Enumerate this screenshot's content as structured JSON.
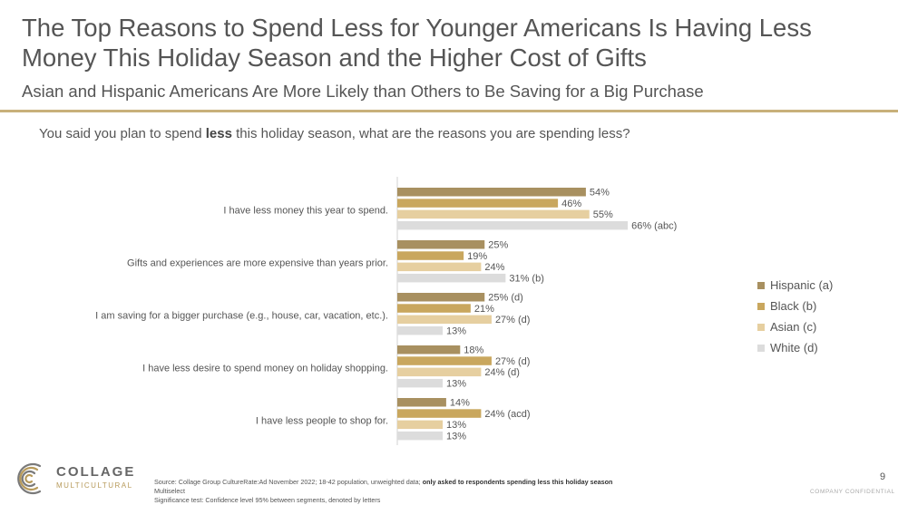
{
  "title": "The Top Reasons to Spend Less for Younger Americans Is Having Less Money This Holiday Season and the Higher Cost of Gifts",
  "subtitle": "Asian and Hispanic Americans Are More Likely than Others to Be Saving for a Big Purchase",
  "question": {
    "before": "You said you plan to spend ",
    "bold": "less",
    "after": " this holiday season, what are the reasons you are spending less?"
  },
  "chart_data": {
    "type": "bar",
    "orientation": "horizontal",
    "categories": [
      "I have less money this year to spend.",
      "Gifts and experiences are more expensive than years prior.",
      "I am saving for a bigger purchase (e.g., house, car, vacation, etc.).",
      "I have less desire to spend money on holiday shopping.",
      "I have less people to shop for."
    ],
    "series": [
      {
        "name": "Hispanic (a)",
        "color": "#a89060",
        "values": [
          54,
          25,
          25,
          18,
          14
        ],
        "labels": [
          "54%",
          "25%",
          "25% (d)",
          "18%",
          "14%"
        ]
      },
      {
        "name": "Black (b)",
        "color": "#c9a75e",
        "values": [
          46,
          19,
          21,
          27,
          24
        ],
        "labels": [
          "46%",
          "19%",
          "21%",
          "27% (d)",
          "24% (acd)"
        ]
      },
      {
        "name": "Asian (c)",
        "color": "#e6cfa0",
        "values": [
          55,
          24,
          27,
          24,
          13
        ],
        "labels": [
          "55%",
          "24%",
          "27% (d)",
          "24% (d)",
          "13%"
        ]
      },
      {
        "name": "White (d)",
        "color": "#dcdcdc",
        "values": [
          66,
          31,
          13,
          13,
          13
        ],
        "labels": [
          "66% (abc)",
          "31% (b)",
          "13%",
          "13%",
          "13%"
        ]
      }
    ],
    "legend_position": "right",
    "grid": false
  },
  "logo": {
    "name": "COLLAGE",
    "sub": "MULTICULTURAL"
  },
  "source": {
    "line1_before": "Source: Collage Group CultureRate:Ad November 2022; 18-42 population, unweighted data; ",
    "line1_bold": "only asked to respondents spending less this holiday season",
    "line2": "Multiselect",
    "line3": "Significance test: Confidence level 95% between segments, denoted by letters"
  },
  "page_number": "9",
  "confidential": "COMPANY CONFIDENTIAL"
}
